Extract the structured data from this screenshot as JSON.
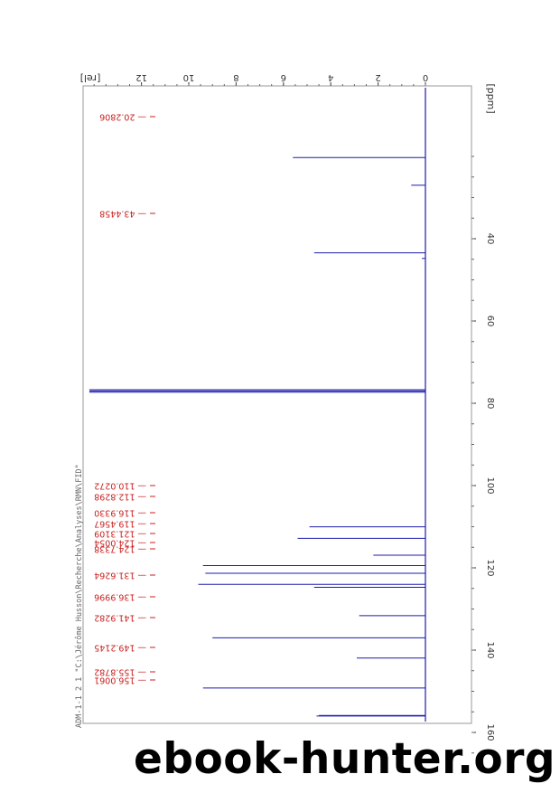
{
  "chart_data": {
    "type": "line",
    "orientation": "rotated-90",
    "xlabel": "[ppm]",
    "ylabel": "[rel]",
    "xlim": [
      -10,
      168
    ],
    "ylim": [
      -0.9,
      14.4
    ],
    "x_ticks": [
      40,
      60,
      80,
      100,
      120,
      140,
      160
    ],
    "y_ticks": [
      0,
      2,
      4,
      6,
      8,
      10,
      12
    ],
    "grid": false,
    "series": [
      {
        "color": "#1c1caa",
        "peaks": [
          {
            "ppm": 20.2806,
            "height": 5.6
          },
          {
            "ppm": 27.0,
            "height": 0.6
          },
          {
            "ppm": 43.4458,
            "height": 4.7
          },
          {
            "ppm": 44.8,
            "height": 0.15
          },
          {
            "ppm": 76.7,
            "height": 14.2
          },
          {
            "ppm": 77.0,
            "height": 14.2
          },
          {
            "ppm": 77.3,
            "height": 14.2
          },
          {
            "ppm": 110.0272,
            "height": 4.9
          },
          {
            "ppm": 112.8298,
            "height": 5.4
          },
          {
            "ppm": 116.933,
            "height": 2.2
          },
          {
            "ppm": 119.4567,
            "height": 9.4
          },
          {
            "ppm": 121.3109,
            "height": 9.3
          },
          {
            "ppm": 124.0054,
            "height": 9.6
          },
          {
            "ppm": 124.7338,
            "height": 4.7
          },
          {
            "ppm": 131.6264,
            "height": 2.8
          },
          {
            "ppm": 136.9996,
            "height": 9.0
          },
          {
            "ppm": 141.9282,
            "height": 2.9
          },
          {
            "ppm": 149.2145,
            "height": 9.4
          },
          {
            "ppm": 155.8782,
            "height": 4.5
          },
          {
            "ppm": 156.0061,
            "height": 4.6
          }
        ]
      }
    ],
    "peak_labels": [
      "20.2806",
      "43.4458",
      "110.0272",
      "112.8298",
      "116.9330",
      "119.4567",
      "121.3109",
      "124.0054",
      "124.7338",
      "131.6264",
      "136.9996",
      "141.9282",
      "149.2145",
      "155.8782",
      "156.0061"
    ],
    "title_note": "ADM-1-1   2   1   \"C:\\Jérôme Husson\\Recherche\\Analyses\\RMN\\FID\""
  },
  "watermark": "ebook-hunter.org",
  "colors": {
    "spectrum": "#1c1caa",
    "labels": "#c81e1e",
    "axes": "#333333"
  }
}
